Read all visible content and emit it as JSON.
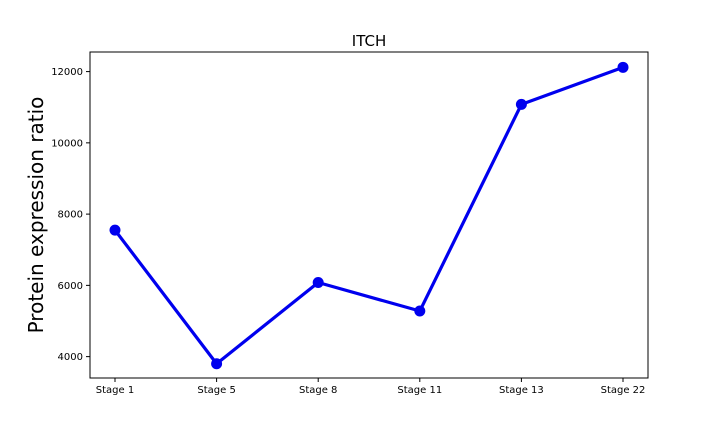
{
  "chart_data": {
    "type": "line",
    "title": "ITCH",
    "xlabel": "",
    "ylabel": "Protein expression ratio",
    "categories": [
      "Stage 1",
      "Stage 5",
      "Stage 8",
      "Stage 11",
      "Stage 13",
      "Stage 22"
    ],
    "series": [
      {
        "values": [
          7550,
          3800,
          6080,
          5280,
          11080,
          12120
        ],
        "color": "#0000ee"
      }
    ],
    "yticks": [
      4000,
      6000,
      8000,
      10000,
      12000
    ],
    "ylim": [
      3400,
      12550
    ],
    "grid": false,
    "legend": "none"
  }
}
